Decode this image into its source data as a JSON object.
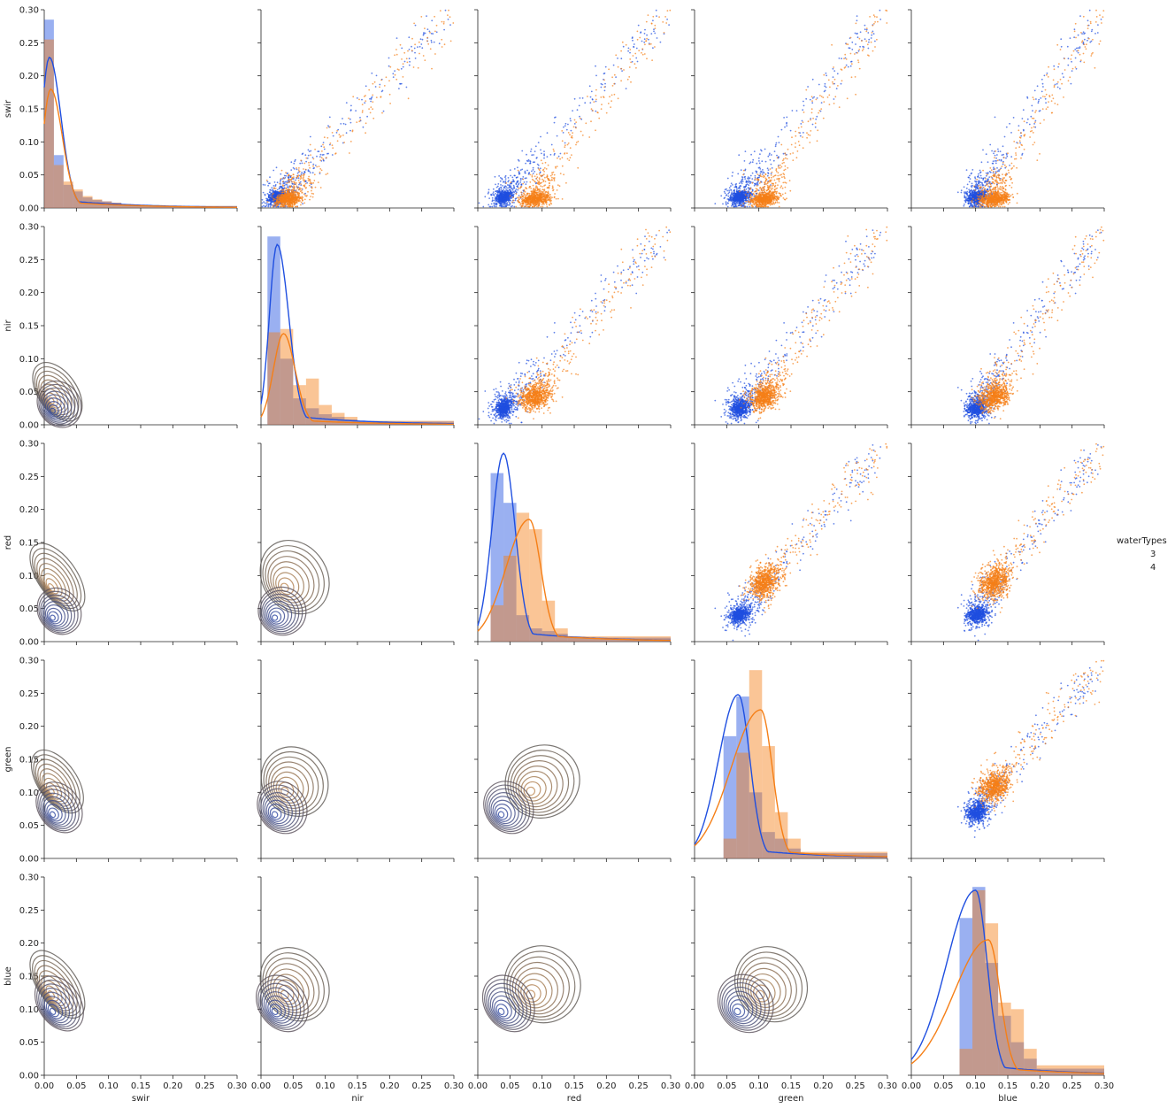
{
  "chart_data": {
    "type": "pairplot",
    "variables": [
      "swir",
      "nir",
      "red",
      "green",
      "blue"
    ],
    "axis_range": [
      0.0,
      0.3
    ],
    "ticks": [
      0.0,
      0.05,
      0.1,
      0.15,
      0.2,
      0.25,
      0.3
    ],
    "tick_labels": [
      "0.00",
      "0.05",
      "0.10",
      "0.15",
      "0.20",
      "0.25",
      "0.30"
    ],
    "upper_triangle": "scatter",
    "diagonal": "histogram + kde",
    "lower_triangle": "kde contours",
    "grid": false,
    "legend": {
      "title": "waterTypes",
      "placement": "right",
      "entries": [
        {
          "label": "3",
          "color": "#1f4fe0"
        },
        {
          "label": "4",
          "color": "#f57f17"
        }
      ]
    },
    "hue_colors": {
      "3": "#1f4fe0",
      "4": "#f57f17"
    },
    "contour_color": "#5a5550",
    "series_stats": {
      "3": {
        "mean": {
          "swir": 0.012,
          "nir": 0.02,
          "red": 0.035,
          "green": 0.065,
          "blue": 0.095
        },
        "sd": {
          "swir": 0.01,
          "nir": 0.012,
          "red": 0.012,
          "green": 0.014,
          "blue": 0.016
        },
        "tail_max": 0.3
      },
      "4": {
        "mean": {
          "swir": 0.01,
          "nir": 0.035,
          "red": 0.08,
          "green": 0.1,
          "blue": 0.12
        },
        "sd": {
          "swir": 0.009,
          "nir": 0.018,
          "red": 0.022,
          "green": 0.02,
          "blue": 0.022
        },
        "tail_max": 0.3
      }
    },
    "diagonal_hist": {
      "swir": {
        "bins": [
          0.0,
          0.015,
          0.03,
          0.045,
          0.06,
          0.075,
          0.09,
          0.105,
          0.12,
          0.135,
          0.15,
          0.3
        ],
        "series_3": [
          0.285,
          0.08,
          0.035,
          0.025,
          0.016,
          0.012,
          0.01,
          0.008,
          0.006,
          0.005,
          0.003
        ],
        "series_4": [
          0.255,
          0.065,
          0.04,
          0.028,
          0.018,
          0.013,
          0.01,
          0.008,
          0.006,
          0.005,
          0.003
        ],
        "kde_peak": {
          "3": [
            0.008,
            0.228
          ],
          "4": [
            0.01,
            0.18
          ]
        }
      },
      "nir": {
        "bins": [
          0.01,
          0.03,
          0.05,
          0.07,
          0.09,
          0.11,
          0.13,
          0.15,
          0.3
        ],
        "series_3": [
          0.285,
          0.1,
          0.04,
          0.025,
          0.016,
          0.012,
          0.008,
          0.005
        ],
        "series_4": [
          0.14,
          0.145,
          0.06,
          0.07,
          0.03,
          0.018,
          0.012,
          0.006
        ],
        "kde_peak": {
          "3": [
            0.025,
            0.273
          ],
          "4": [
            0.035,
            0.138
          ]
        }
      },
      "red": {
        "bins": [
          0.02,
          0.04,
          0.06,
          0.08,
          0.1,
          0.12,
          0.14,
          0.3
        ],
        "series_3": [
          0.255,
          0.21,
          0.04,
          0.02,
          0.016,
          0.012,
          0.006
        ],
        "series_4": [
          0.055,
          0.13,
          0.195,
          0.17,
          0.062,
          0.02,
          0.008
        ],
        "kde_peak": {
          "3": [
            0.04,
            0.285
          ],
          "4": [
            0.08,
            0.185
          ]
        }
      },
      "green": {
        "bins": [
          0.045,
          0.065,
          0.085,
          0.105,
          0.125,
          0.145,
          0.165,
          0.3
        ],
        "series_3": [
          0.185,
          0.245,
          0.1,
          0.04,
          0.03,
          0.015,
          0.008
        ],
        "series_4": [
          0.03,
          0.16,
          0.285,
          0.17,
          0.07,
          0.03,
          0.01
        ],
        "kde_peak": {
          "3": [
            0.068,
            0.248
          ],
          "4": [
            0.103,
            0.225
          ]
        }
      },
      "blue": {
        "bins": [
          0.075,
          0.095,
          0.115,
          0.135,
          0.155,
          0.175,
          0.195,
          0.3
        ],
        "series_3": [
          0.238,
          0.285,
          0.17,
          0.09,
          0.05,
          0.025,
          0.01
        ],
        "series_4": [
          0.04,
          0.28,
          0.23,
          0.11,
          0.1,
          0.04,
          0.015
        ],
        "kde_peak": {
          "3": [
            0.1,
            0.28
          ],
          "4": [
            0.12,
            0.205
          ]
        }
      }
    }
  }
}
